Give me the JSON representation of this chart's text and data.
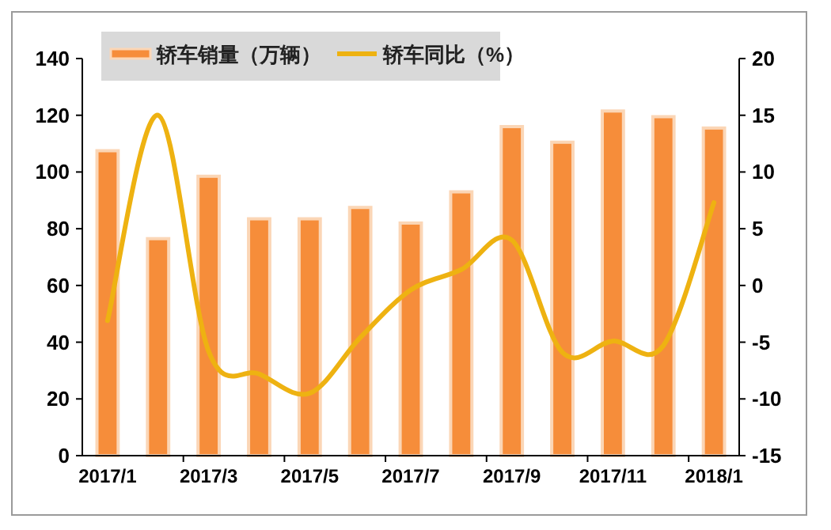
{
  "chart_data": {
    "type": "bar",
    "categories": [
      "2017/1",
      null,
      "2017/3",
      null,
      "2017/5",
      null,
      "2017/7",
      null,
      "2017/9",
      null,
      "2017/11",
      null,
      "2018/1"
    ],
    "series": [
      {
        "name": "轿车销量（万辆）",
        "color": "#f68d3a",
        "values": [
          107.5,
          76.5,
          98.5,
          83.5,
          83.5,
          87.5,
          82,
          93,
          116,
          110.5,
          121.5,
          119.5,
          115.5
        ]
      },
      {
        "name": "轿车同比（%）",
        "type": "line",
        "axis": "y2",
        "color": "#eeb211",
        "values": [
          -3.1,
          15,
          -5.8,
          -7.8,
          -9.5,
          -4.6,
          -0.4,
          1.4,
          4,
          -5.9,
          -4.9,
          -5.3,
          7.3
        ]
      }
    ],
    "ylim": [
      0,
      140
    ],
    "yticks": [
      0,
      20,
      40,
      60,
      80,
      100,
      120,
      140
    ],
    "y2lim": [
      -15,
      20
    ],
    "y2ticks": [
      -15,
      -10,
      -5,
      0,
      5,
      10,
      15,
      20
    ],
    "grid": false,
    "legend": "top left",
    "marker": "none",
    "line_style": "solid"
  }
}
